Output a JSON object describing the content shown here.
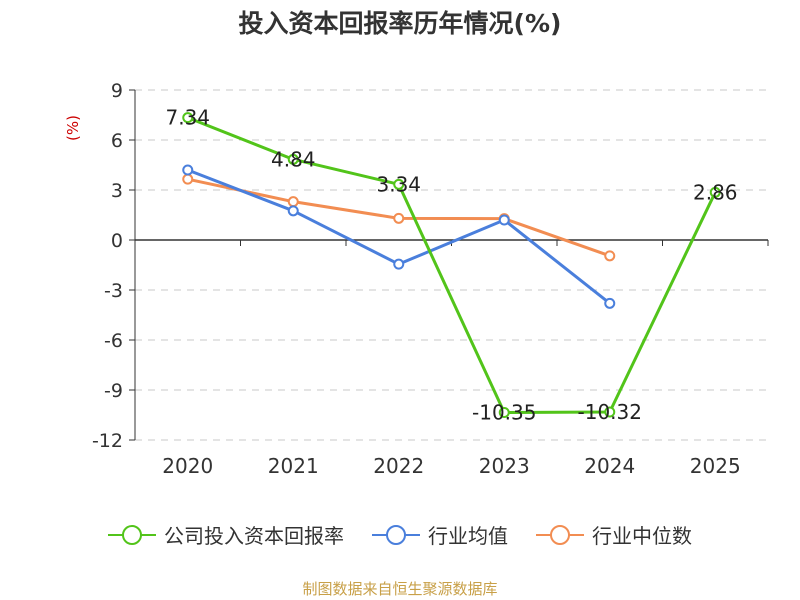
{
  "title": "投入资本回报率历年情况(%)",
  "source": "制图数据来自恒生聚源数据库",
  "colors": {
    "company": "#52c41a",
    "industry_avg": "#4a7fdc",
    "industry_median": "#f28d52",
    "unit_label": "#cc0000",
    "grid": "#c8c8c8"
  },
  "chart_data": {
    "type": "line",
    "categories": [
      "2020",
      "2021",
      "2022",
      "2023",
      "2024",
      "2025"
    ],
    "ylabel": "(%)",
    "ylim": [
      -12,
      9
    ],
    "yticks": [
      9,
      6,
      3,
      0,
      -3,
      -6,
      -9,
      -12
    ],
    "ytick_labels": [
      "9",
      "6",
      "3",
      "0",
      "-3",
      "-6",
      "-9",
      "-12"
    ],
    "grid": true,
    "legend_position": "bottom",
    "series": [
      {
        "name": "公司投入资本回报率",
        "color": "#52c41a",
        "values": [
          7.34,
          4.84,
          3.34,
          -10.35,
          -10.32,
          2.86
        ],
        "labels": [
          "7.34",
          "4.84",
          "3.34",
          "-10.35",
          "-10.32",
          "2.86"
        ]
      },
      {
        "name": "行业均值",
        "color": "#4a7fdc",
        "values": [
          4.2,
          1.75,
          -1.45,
          1.2,
          -3.8,
          null
        ]
      },
      {
        "name": "行业中位数",
        "color": "#f28d52",
        "values": [
          3.65,
          2.3,
          1.3,
          1.28,
          -0.95,
          null
        ]
      }
    ]
  }
}
